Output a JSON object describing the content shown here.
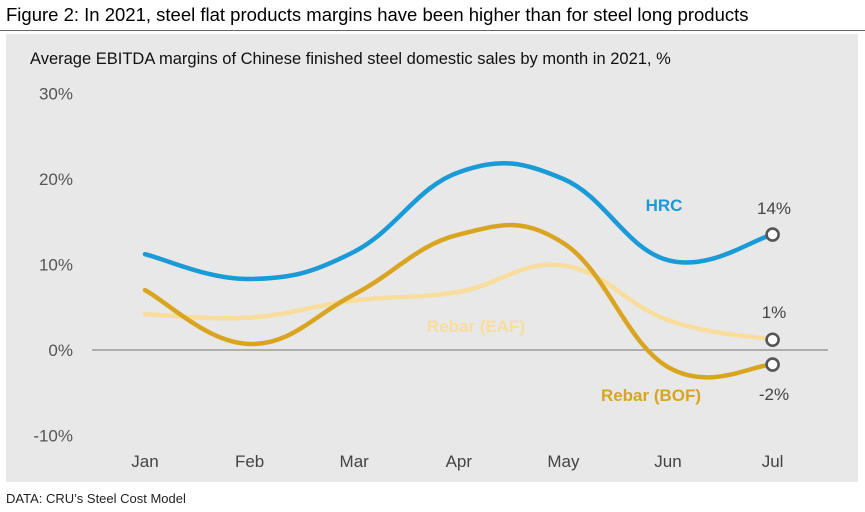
{
  "figure_title": "Figure 2: In 2021, steel flat products margins have been higher than for steel long products",
  "source": "DATA: CRU’s Steel Cost Model",
  "chart_data": {
    "type": "line",
    "title": "Average EBITDA margins of Chinese finished steel domestic sales by month in 2021, %",
    "xlabel": "",
    "ylabel": "",
    "categories": [
      "Jan",
      "Feb",
      "Mar",
      "Apr",
      "May",
      "Jun",
      "Jul"
    ],
    "ylim": [
      -10,
      30
    ],
    "yticks": [
      -10,
      0,
      10,
      20,
      30
    ],
    "ytick_labels": [
      "-10%",
      "0%",
      "10%",
      "20%",
      "30%"
    ],
    "grid": false,
    "series": [
      {
        "name": "HRC",
        "color": "#1a9ad6",
        "values": [
          11.2,
          8.3,
          11.5,
          20.8,
          20.0,
          10.5,
          13.5
        ],
        "end_label": "14%"
      },
      {
        "name": "Rebar (EAF)",
        "color": "#f8dd9c",
        "values": [
          4.2,
          3.8,
          5.8,
          6.8,
          9.9,
          3.5,
          1.2
        ],
        "end_label": "1%"
      },
      {
        "name": "Rebar (BOF)",
        "color": "#d9a521",
        "values": [
          7.0,
          0.7,
          6.5,
          13.5,
          12.5,
          -2.0,
          -1.7
        ],
        "end_label": "-2%"
      }
    ]
  }
}
